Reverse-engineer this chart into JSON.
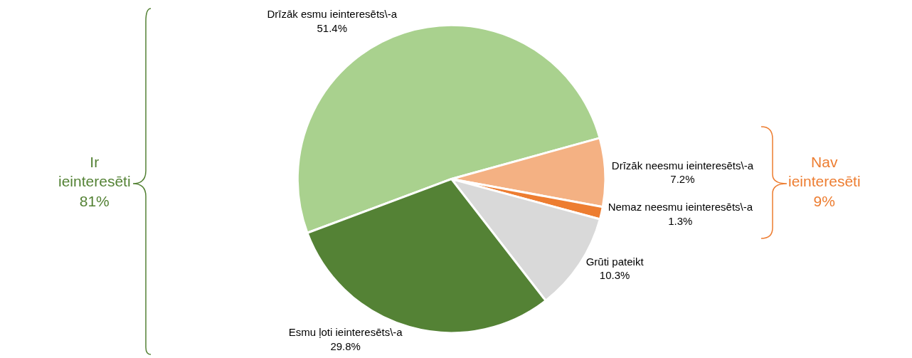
{
  "chart_data": {
    "type": "pie",
    "categories": [
      "Drīzāk esmu ieinteresēts\\-a",
      "Drīzāk neesmu ieinteresēts\\-a",
      "Nemaz neesmu ieinteresēts\\-a",
      "Grūti pateikt",
      "Esmu ļoti ieinteresēts\\-a"
    ],
    "values": [
      51.4,
      7.2,
      1.3,
      10.3,
      29.8
    ],
    "value_labels": [
      "51.4%",
      "7.2%",
      "1.3%",
      "10.3%",
      "29.8%"
    ],
    "colors": [
      "#a9d18e",
      "#f4b183",
      "#ed7d31",
      "#d9d9d9",
      "#548235"
    ],
    "annotations": [
      "Ir\nieinteresēti\n81%",
      "Nav\nieinteresēti\n9%"
    ],
    "legend": false
  }
}
